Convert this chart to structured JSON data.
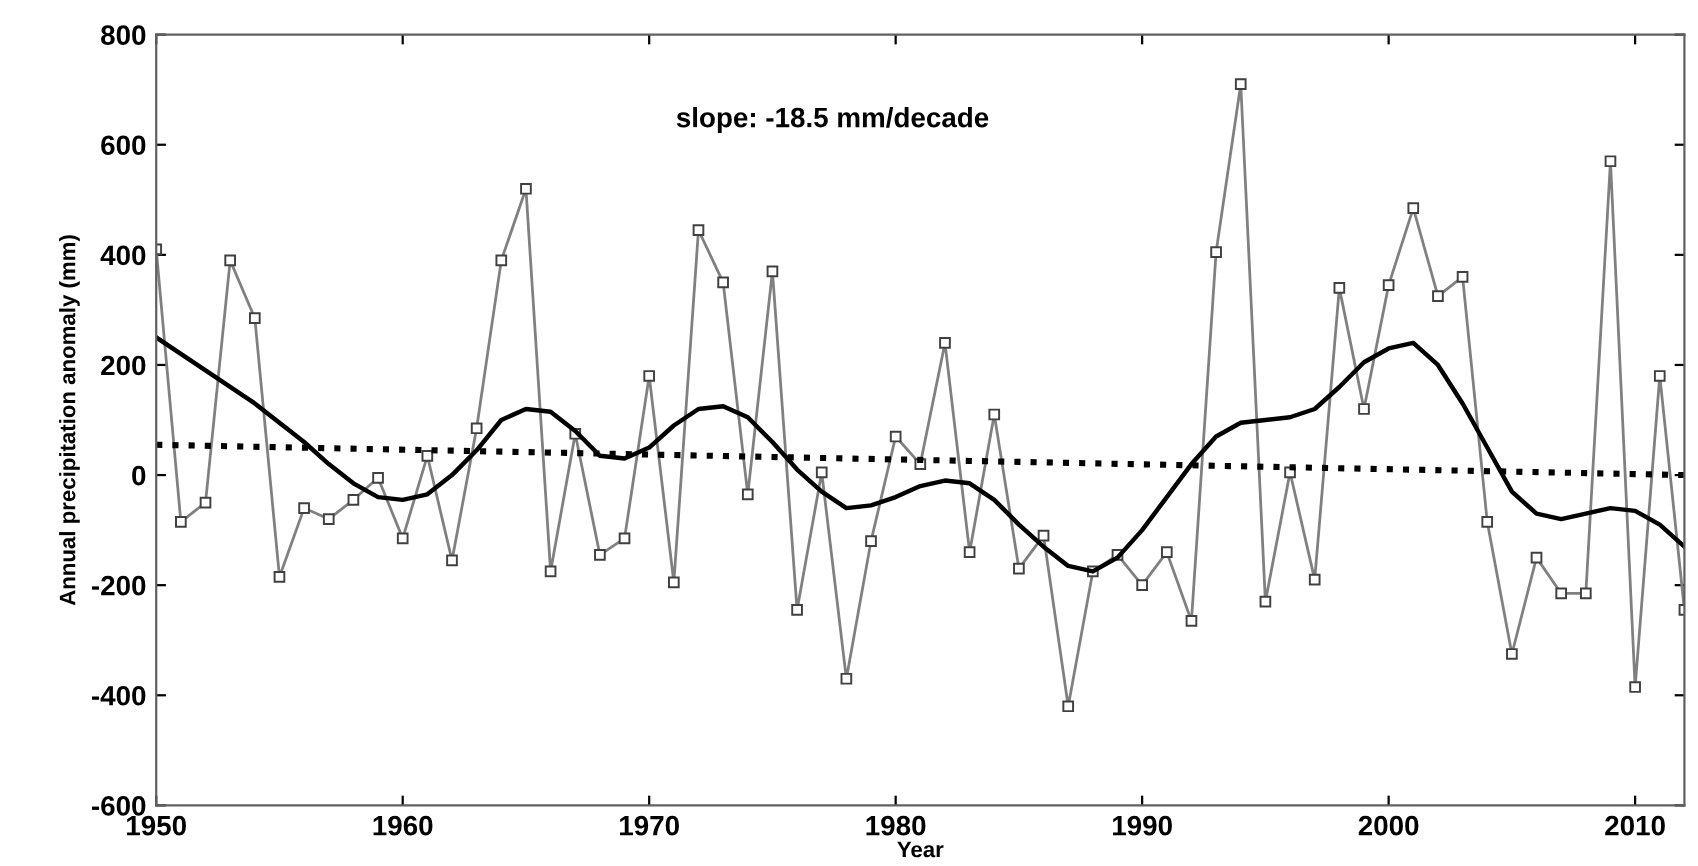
{
  "chart_data": {
    "type": "line",
    "xlabel": "Year",
    "ylabel": "Annual precipitation anomaly (mm)",
    "annotations": [
      "slope: -18.5 mm/decade"
    ],
    "xlim": [
      1950,
      2012
    ],
    "xticks": [
      1950,
      1960,
      1970,
      1980,
      1990,
      2000,
      2010
    ],
    "ylim": [
      -600,
      800
    ],
    "yticks": [
      -600,
      -400,
      -200,
      0,
      200,
      400,
      600,
      800
    ],
    "grid": false,
    "legend": false,
    "series": [
      {
        "color": "#808080",
        "marker": "square",
        "line_style": "solid",
        "x": [
          1950,
          1951,
          1952,
          1953,
          1954,
          1955,
          1956,
          1957,
          1958,
          1959,
          1960,
          1961,
          1962,
          1963,
          1964,
          1965,
          1966,
          1967,
          1968,
          1969,
          1970,
          1971,
          1972,
          1973,
          1974,
          1975,
          1976,
          1977,
          1978,
          1979,
          1980,
          1981,
          1982,
          1983,
          1984,
          1985,
          1986,
          1987,
          1988,
          1989,
          1990,
          1991,
          1992,
          1993,
          1994,
          1995,
          1996,
          1997,
          1998,
          1999,
          2000,
          2001,
          2002,
          2003,
          2004,
          2005,
          2006,
          2007,
          2008,
          2009,
          2010,
          2011,
          2012
        ],
        "values": [
          410,
          -85,
          -50,
          390,
          285,
          -185,
          -60,
          -80,
          -45,
          -5,
          -115,
          35,
          -155,
          85,
          390,
          520,
          -175,
          75,
          -145,
          -115,
          180,
          -195,
          445,
          350,
          -35,
          370,
          -245,
          5,
          -370,
          -120,
          70,
          20,
          240,
          -140,
          110,
          -170,
          -110,
          -420,
          -175,
          -145,
          -200,
          -140,
          -265,
          405,
          710,
          -230,
          5,
          -190,
          340,
          120,
          345,
          485,
          325,
          360,
          -85,
          -325,
          -150,
          -215,
          -215,
          570,
          -385,
          180,
          -245
        ]
      },
      {
        "color": "#000000",
        "marker": "none",
        "line_style": "solid",
        "x": [
          1950,
          1952,
          1954,
          1956,
          1957,
          1958,
          1959,
          1960,
          1961,
          1962,
          1963,
          1964,
          1965,
          1966,
          1967,
          1968,
          1969,
          1970,
          1971,
          1972,
          1973,
          1974,
          1975,
          1976,
          1977,
          1978,
          1979,
          1980,
          1981,
          1982,
          1983,
          1984,
          1985,
          1986,
          1987,
          1988,
          1989,
          1990,
          1991,
          1992,
          1993,
          1994,
          1995,
          1996,
          1997,
          1998,
          1999,
          2000,
          2001,
          2002,
          2003,
          2004,
          2005,
          2006,
          2007,
          2008,
          2009,
          2010,
          2011,
          2012
        ],
        "values": [
          250,
          190,
          130,
          60,
          20,
          -15,
          -40,
          -45,
          -35,
          0,
          45,
          100,
          120,
          115,
          80,
          35,
          30,
          50,
          90,
          120,
          125,
          105,
          60,
          10,
          -30,
          -60,
          -55,
          -40,
          -20,
          -10,
          -15,
          -45,
          -90,
          -130,
          -165,
          -175,
          -150,
          -100,
          -40,
          20,
          70,
          95,
          100,
          105,
          120,
          160,
          205,
          230,
          240,
          200,
          130,
          50,
          -30,
          -70,
          -80,
          -70,
          -60,
          -65,
          -90,
          -130
        ]
      },
      {
        "color": "#000000",
        "marker": "none",
        "line_style": "dotted",
        "x": [
          1950,
          2012
        ],
        "values": [
          55,
          0
        ]
      }
    ]
  }
}
